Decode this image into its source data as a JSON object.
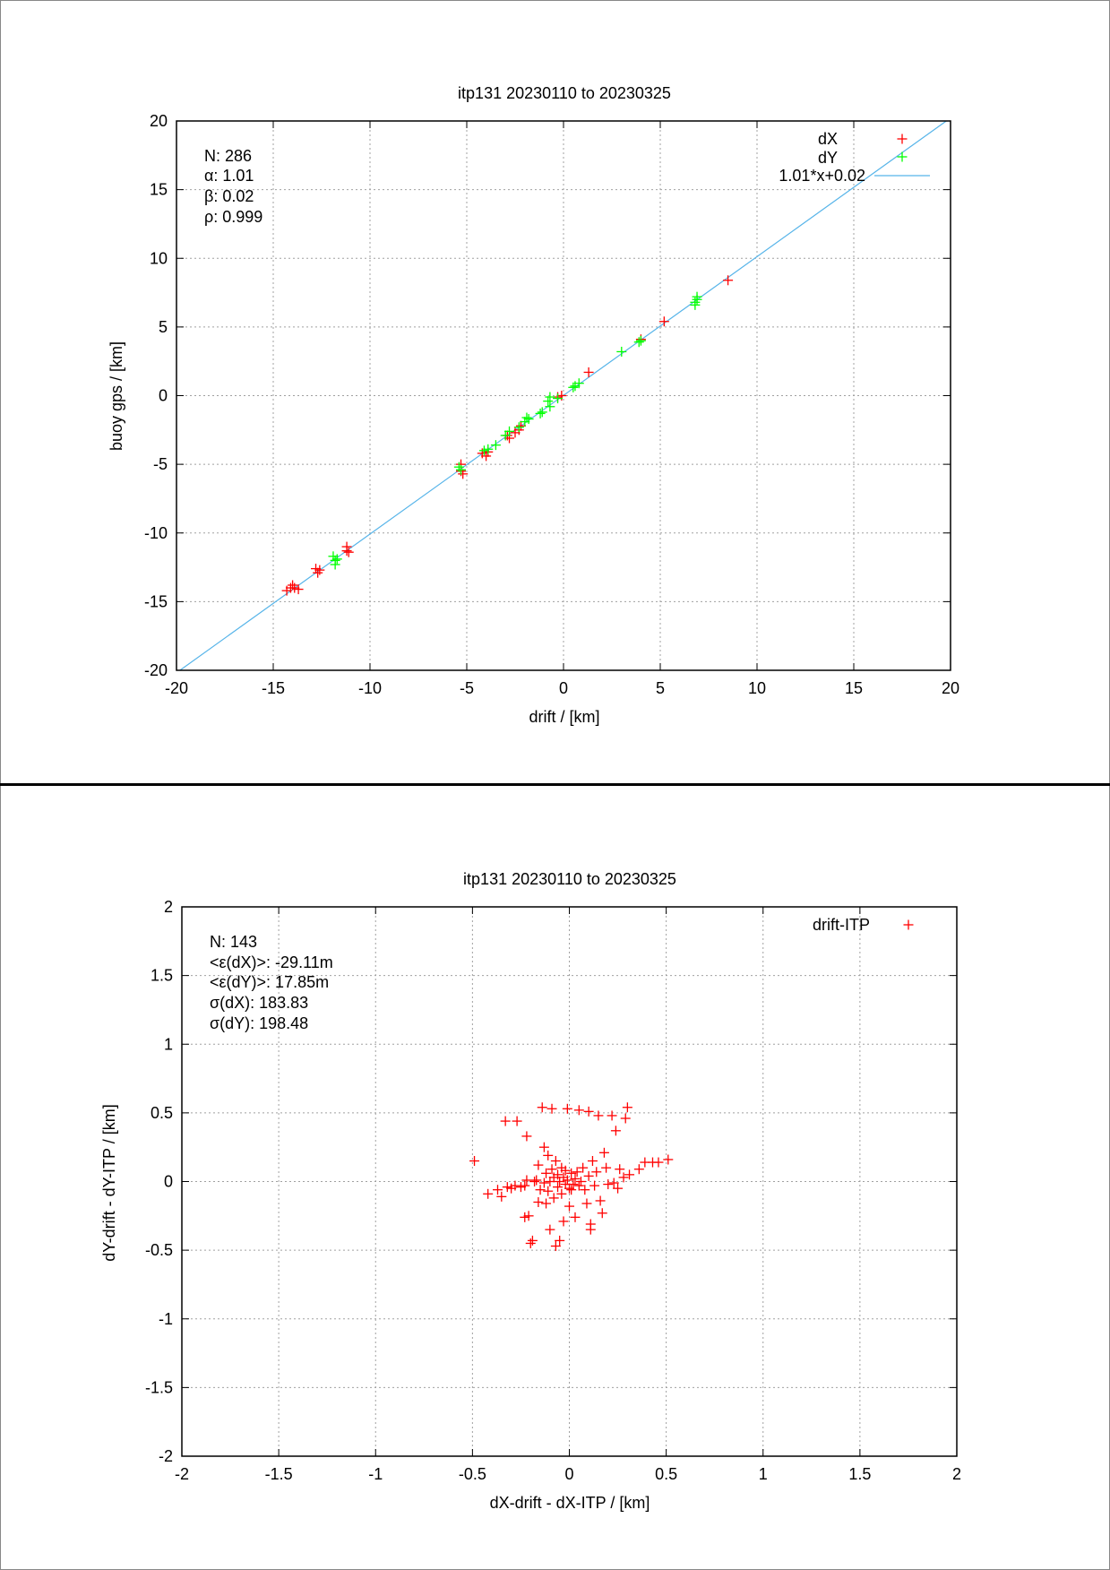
{
  "chart_data": [
    {
      "type": "scatter",
      "title": "itp131 20230110 to 20230325",
      "xlabel": "drift / [km]",
      "ylabel": "buoy gps / [km]",
      "xlim": [
        -20,
        20
      ],
      "ylim": [
        -20,
        20
      ],
      "xticks": [
        "-20",
        "-15",
        "-10",
        "-5",
        "0",
        "5",
        "10",
        "15",
        "20"
      ],
      "yticks": [
        "-20",
        "-15",
        "-10",
        "-5",
        "0",
        "5",
        "10",
        "15",
        "20"
      ],
      "grid": true,
      "legend_position": "top-right",
      "stats": [
        "N: 286",
        "α: 1.01",
        "β: 0.02",
        "ρ: 0.999"
      ],
      "fit_line": {
        "name": "1.01*x+0.02",
        "slope": 1.01,
        "intercept": 0.02,
        "color": "#56b4e9"
      },
      "series": [
        {
          "name": "dX",
          "color": "#ff0000",
          "points": [
            [
              -14.3,
              -14.2
            ],
            [
              -14.1,
              -14.0
            ],
            [
              -14.0,
              -13.8
            ],
            [
              -13.9,
              -14.0
            ],
            [
              -13.7,
              -14.1
            ],
            [
              -12.8,
              -12.6
            ],
            [
              -12.7,
              -12.9
            ],
            [
              -12.6,
              -12.7
            ],
            [
              -11.2,
              -11.0
            ],
            [
              -11.1,
              -11.4
            ],
            [
              -11.2,
              -11.3
            ],
            [
              -5.3,
              -5.0
            ],
            [
              -5.3,
              -5.5
            ],
            [
              -5.2,
              -5.7
            ],
            [
              -4.2,
              -4.2
            ],
            [
              -4.0,
              -4.4
            ],
            [
              -3.9,
              -4.1
            ],
            [
              -2.9,
              -2.9
            ],
            [
              -2.8,
              -3.1
            ],
            [
              -2.5,
              -2.7
            ],
            [
              -2.3,
              -2.5
            ],
            [
              -2.2,
              -2.2
            ],
            [
              -0.3,
              -0.1
            ],
            [
              -0.1,
              0.0
            ],
            [
              1.3,
              1.7
            ],
            [
              4.0,
              4.1
            ],
            [
              5.2,
              5.4
            ],
            [
              8.5,
              8.4
            ]
          ]
        },
        {
          "name": "dY",
          "color": "#00ff00",
          "points": [
            [
              -11.9,
              -11.7
            ],
            [
              -11.8,
              -12.0
            ],
            [
              -11.8,
              -12.3
            ],
            [
              -11.7,
              -11.9
            ],
            [
              -5.4,
              -5.2
            ],
            [
              -5.3,
              -5.4
            ],
            [
              -4.1,
              -4.0
            ],
            [
              -3.9,
              -3.9
            ],
            [
              -3.5,
              -3.6
            ],
            [
              -3.0,
              -2.9
            ],
            [
              -2.8,
              -2.6
            ],
            [
              -2.3,
              -2.3
            ],
            [
              -2.0,
              -1.9
            ],
            [
              -1.9,
              -1.6
            ],
            [
              -1.8,
              -1.7
            ],
            [
              -1.2,
              -1.3
            ],
            [
              -1.1,
              -1.2
            ],
            [
              -0.8,
              -0.4
            ],
            [
              -0.7,
              -0.8
            ],
            [
              -0.7,
              -0.1
            ],
            [
              -0.3,
              -0.2
            ],
            [
              0.5,
              0.6
            ],
            [
              0.6,
              0.7
            ],
            [
              0.8,
              0.9
            ],
            [
              3.0,
              3.2
            ],
            [
              3.9,
              3.9
            ],
            [
              4.0,
              4.0
            ],
            [
              6.8,
              6.8
            ],
            [
              6.9,
              7.0
            ],
            [
              6.9,
              7.2
            ],
            [
              6.8,
              6.6
            ]
          ]
        }
      ]
    },
    {
      "type": "scatter",
      "title": "itp131 20230110 to 20230325",
      "xlabel": "dX-drift - dX-ITP / [km]",
      "ylabel": "dY-drift - dY-ITP / [km]",
      "xlim": [
        -2,
        2
      ],
      "ylim": [
        -2,
        2
      ],
      "xticks": [
        "-2",
        "-1.5",
        "-1",
        "-0.5",
        "0",
        "0.5",
        "1",
        "1.5",
        "2"
      ],
      "yticks": [
        "-2",
        "-1.5",
        "-1",
        "-0.5",
        "0",
        "0.5",
        "1",
        "1.5",
        "2"
      ],
      "grid": true,
      "legend_position": "top-right",
      "stats": [
        "N: 143",
        "<ε(dX)>:  -29.11m",
        "<ε(dY)>: 17.85m",
        "σ(dX):  183.83",
        "σ(dY):  198.48"
      ],
      "series": [
        {
          "name": "drift-ITP",
          "color": "#ff0000",
          "points": [
            [
              -0.49,
              0.15
            ],
            [
              -0.42,
              -0.09
            ],
            [
              -0.37,
              -0.06
            ],
            [
              -0.35,
              -0.11
            ],
            [
              -0.32,
              -0.04
            ],
            [
              -0.3,
              -0.05
            ],
            [
              -0.28,
              -0.03
            ],
            [
              -0.27,
              0.44
            ],
            [
              -0.25,
              -0.04
            ],
            [
              -0.23,
              -0.03
            ],
            [
              -0.22,
              0.01
            ],
            [
              -0.22,
              0.33
            ],
            [
              -0.23,
              -0.26
            ],
            [
              -0.21,
              -0.25
            ],
            [
              -0.2,
              -0.45
            ],
            [
              -0.19,
              -0.43
            ],
            [
              -0.18,
              0.0
            ],
            [
              -0.17,
              0.01
            ],
            [
              -0.16,
              -0.15
            ],
            [
              -0.16,
              0.12
            ],
            [
              -0.15,
              -0.06
            ],
            [
              -0.14,
              0.54
            ],
            [
              -0.13,
              0.25
            ],
            [
              -0.13,
              -0.01
            ],
            [
              -0.12,
              -0.16
            ],
            [
              -0.12,
              0.06
            ],
            [
              -0.11,
              0.19
            ],
            [
              -0.11,
              -0.07
            ],
            [
              -0.1,
              -0.35
            ],
            [
              -0.1,
              0.0
            ],
            [
              -0.09,
              0.09
            ],
            [
              -0.09,
              0.53
            ],
            [
              -0.08,
              -0.12
            ],
            [
              -0.08,
              0.03
            ],
            [
              -0.07,
              -0.47
            ],
            [
              -0.07,
              0.15
            ],
            [
              -0.06,
              0.05
            ],
            [
              -0.06,
              -0.04
            ],
            [
              -0.05,
              -0.43
            ],
            [
              -0.05,
              0.0
            ],
            [
              -0.04,
              0.1
            ],
            [
              -0.04,
              -0.09
            ],
            [
              -0.03,
              -0.29
            ],
            [
              -0.03,
              0.03
            ],
            [
              -0.02,
              -0.02
            ],
            [
              -0.02,
              0.08
            ],
            [
              -0.01,
              0.53
            ],
            [
              -0.01,
              0.01
            ],
            [
              0.0,
              -0.05
            ],
            [
              0.0,
              -0.18
            ],
            [
              0.01,
              0.06
            ],
            [
              0.01,
              -0.06
            ],
            [
              0.02,
              -0.02
            ],
            [
              0.03,
              0.02
            ],
            [
              0.03,
              -0.26
            ],
            [
              0.04,
              0.07
            ],
            [
              0.05,
              0.52
            ],
            [
              0.05,
              -0.03
            ],
            [
              0.06,
              0.0
            ],
            [
              0.07,
              0.1
            ],
            [
              0.08,
              -0.06
            ],
            [
              0.09,
              -0.16
            ],
            [
              0.1,
              0.51
            ],
            [
              0.1,
              0.04
            ],
            [
              0.11,
              -0.31
            ],
            [
              0.11,
              -0.35
            ],
            [
              0.12,
              0.15
            ],
            [
              0.13,
              -0.03
            ],
            [
              0.14,
              0.07
            ],
            [
              0.15,
              0.48
            ],
            [
              0.16,
              -0.14
            ],
            [
              0.17,
              -0.23
            ],
            [
              0.18,
              0.21
            ],
            [
              0.19,
              0.1
            ],
            [
              0.2,
              -0.02
            ],
            [
              0.22,
              0.48
            ],
            [
              0.23,
              -0.01
            ],
            [
              0.24,
              0.37
            ],
            [
              0.26,
              0.09
            ],
            [
              0.28,
              0.03
            ],
            [
              0.29,
              0.46
            ],
            [
              0.3,
              0.54
            ],
            [
              0.31,
              0.05
            ],
            [
              0.36,
              0.09
            ],
            [
              0.39,
              0.14
            ],
            [
              0.43,
              0.14
            ],
            [
              0.46,
              0.14
            ],
            [
              0.51,
              0.16
            ],
            [
              -0.33,
              0.44
            ],
            [
              0.25,
              -0.05
            ]
          ]
        }
      ]
    }
  ]
}
